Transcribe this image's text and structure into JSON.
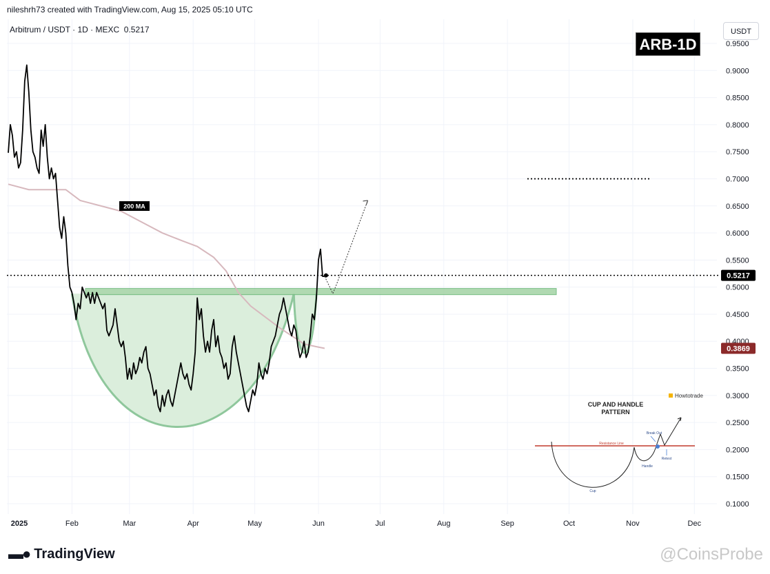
{
  "header": {
    "attribution": "nileshrh73 created with TradingView.com, Aug 15, 2025 05:10 UTC"
  },
  "symbol": {
    "line": "Arbitrum / USDT · 1D · MEXC  0.5217"
  },
  "controls": {
    "currency": "USDT"
  },
  "badge": {
    "text": "ARB-1D"
  },
  "annotations": {
    "ma_label": "200 MA"
  },
  "inset": {
    "title_line1": "CUP AND HANDLE",
    "title_line2": "PATTERN",
    "brand": "Howtotrade",
    "resistance_label": "Resistance Line",
    "breakout_label": "Break Out",
    "retest_label": "Retest",
    "handle_label": "Handle",
    "cup_label": "Cup"
  },
  "footer": {
    "brand": "TradingView",
    "watermark": "@CoinsProbe"
  },
  "colors": {
    "price_line": "#000000",
    "ma_line": "#d7b8bd",
    "cup_fill": "#dbeedc",
    "cup_stroke": "#8fc79c",
    "resistance_zone": "#a8d5a9",
    "current_price_tag": "#000000",
    "ma_price_tag": "#8b2a2a",
    "inset_resistance": "#c0392b"
  },
  "chart_data": {
    "type": "line",
    "symbol": "Arbitrum / USDT",
    "timeframe": "1D",
    "exchange": "MEXC",
    "y_axis": {
      "min": 0.1,
      "max": 0.95,
      "ticks": [
        "0.9500",
        "0.9000",
        "0.8500",
        "0.8000",
        "0.7500",
        "0.7000",
        "0.6500",
        "0.6000",
        "0.5500",
        "0.5000",
        "0.4500",
        "0.4000",
        "0.3500",
        "0.3000",
        "0.2500",
        "0.2000",
        "0.1500",
        "0.1000"
      ]
    },
    "x_axis": {
      "ticks": [
        "2025",
        "Feb",
        "Mar",
        "Apr",
        "May",
        "Jun",
        "Jul",
        "Aug",
        "Sep",
        "Oct",
        "Nov",
        "Dec"
      ]
    },
    "current_price": {
      "label": "0.5217",
      "value": 0.5217
    },
    "ma_price": {
      "label": "0.3869",
      "value": 0.3869
    },
    "price_series": [
      [
        0.0,
        0.748
      ],
      [
        1.0,
        0.8
      ],
      [
        2.0,
        0.78
      ],
      [
        3.0,
        0.74
      ],
      [
        4.0,
        0.75
      ],
      [
        5.0,
        0.72
      ],
      [
        6.0,
        0.73
      ],
      [
        7.0,
        0.79
      ],
      [
        8.0,
        0.88
      ],
      [
        9.0,
        0.91
      ],
      [
        10.0,
        0.86
      ],
      [
        11.0,
        0.79
      ],
      [
        12.0,
        0.75
      ],
      [
        13.0,
        0.74
      ],
      [
        14.0,
        0.72
      ],
      [
        15.0,
        0.71
      ],
      [
        16.0,
        0.79
      ],
      [
        17.0,
        0.76
      ],
      [
        18.0,
        0.8
      ],
      [
        19.0,
        0.74
      ],
      [
        20.0,
        0.7
      ],
      [
        21.0,
        0.72
      ],
      [
        22.0,
        0.7
      ],
      [
        23.0,
        0.71
      ],
      [
        24.0,
        0.66
      ],
      [
        25.0,
        0.61
      ],
      [
        26.0,
        0.59
      ],
      [
        27.0,
        0.63
      ],
      [
        28.0,
        0.6
      ],
      [
        29.0,
        0.54
      ],
      [
        30.0,
        0.5
      ],
      [
        31.0,
        0.49
      ],
      [
        32.0,
        0.47
      ],
      [
        33.0,
        0.44
      ],
      [
        34.0,
        0.47
      ],
      [
        35.0,
        0.46
      ],
      [
        36.0,
        0.5
      ],
      [
        37.0,
        0.49
      ],
      [
        38.0,
        0.48
      ],
      [
        39.0,
        0.49
      ],
      [
        40.0,
        0.47
      ],
      [
        41.0,
        0.49
      ],
      [
        42.0,
        0.47
      ],
      [
        43.0,
        0.49
      ],
      [
        44.0,
        0.48
      ],
      [
        45.0,
        0.47
      ],
      [
        46.0,
        0.46
      ],
      [
        47.0,
        0.47
      ],
      [
        48.0,
        0.42
      ],
      [
        49.0,
        0.41
      ],
      [
        50.0,
        0.42
      ],
      [
        51.0,
        0.43
      ],
      [
        52.0,
        0.46
      ],
      [
        53.0,
        0.43
      ],
      [
        54.0,
        0.4
      ],
      [
        55.0,
        0.39
      ],
      [
        56.0,
        0.4
      ],
      [
        57.0,
        0.37
      ],
      [
        58.0,
        0.33
      ],
      [
        59.0,
        0.35
      ],
      [
        60.0,
        0.33
      ],
      [
        61.0,
        0.36
      ],
      [
        62.0,
        0.34
      ],
      [
        63.0,
        0.35
      ],
      [
        64.0,
        0.37
      ],
      [
        65.0,
        0.36
      ],
      [
        66.0,
        0.38
      ],
      [
        67.0,
        0.39
      ],
      [
        68.0,
        0.35
      ],
      [
        69.0,
        0.34
      ],
      [
        70.0,
        0.32
      ],
      [
        71.0,
        0.3
      ],
      [
        72.0,
        0.31
      ],
      [
        73.0,
        0.28
      ],
      [
        74.0,
        0.27
      ],
      [
        75.0,
        0.3
      ],
      [
        76.0,
        0.28
      ],
      [
        77.0,
        0.3
      ],
      [
        78.0,
        0.31
      ],
      [
        79.0,
        0.29
      ],
      [
        80.0,
        0.28
      ],
      [
        81.0,
        0.3
      ],
      [
        82.0,
        0.32
      ],
      [
        83.0,
        0.34
      ],
      [
        84.0,
        0.36
      ],
      [
        85.0,
        0.34
      ],
      [
        86.0,
        0.33
      ],
      [
        87.0,
        0.34
      ],
      [
        88.0,
        0.32
      ],
      [
        89.0,
        0.31
      ],
      [
        90.0,
        0.34
      ],
      [
        91.0,
        0.38
      ],
      [
        92.0,
        0.48
      ],
      [
        93.0,
        0.44
      ],
      [
        94.0,
        0.46
      ],
      [
        95.0,
        0.41
      ],
      [
        96.0,
        0.38
      ],
      [
        97.0,
        0.4
      ],
      [
        98.0,
        0.38
      ],
      [
        99.0,
        0.42
      ],
      [
        100.0,
        0.44
      ],
      [
        101.0,
        0.39
      ],
      [
        102.0,
        0.41
      ],
      [
        103.0,
        0.38
      ],
      [
        104.0,
        0.37
      ],
      [
        105.0,
        0.35
      ],
      [
        106.0,
        0.36
      ],
      [
        107.0,
        0.33
      ],
      [
        108.0,
        0.34
      ],
      [
        109.0,
        0.39
      ],
      [
        110.0,
        0.41
      ],
      [
        111.0,
        0.38
      ],
      [
        112.0,
        0.36
      ],
      [
        113.0,
        0.34
      ],
      [
        114.0,
        0.32
      ],
      [
        115.0,
        0.3
      ],
      [
        116.0,
        0.28
      ],
      [
        117.0,
        0.27
      ],
      [
        118.0,
        0.29
      ],
      [
        119.0,
        0.31
      ],
      [
        120.0,
        0.3
      ],
      [
        121.0,
        0.32
      ],
      [
        122.0,
        0.36
      ],
      [
        123.0,
        0.34
      ],
      [
        124.0,
        0.33
      ],
      [
        125.0,
        0.35
      ],
      [
        126.0,
        0.34
      ],
      [
        127.0,
        0.36
      ],
      [
        128.0,
        0.39
      ],
      [
        129.0,
        0.4
      ],
      [
        130.0,
        0.41
      ],
      [
        131.0,
        0.43
      ],
      [
        132.0,
        0.45
      ],
      [
        133.0,
        0.46
      ],
      [
        134.0,
        0.48
      ],
      [
        135.0,
        0.46
      ],
      [
        136.0,
        0.44
      ],
      [
        137.0,
        0.42
      ],
      [
        138.0,
        0.41
      ],
      [
        139.0,
        0.43
      ],
      [
        140.0,
        0.42
      ],
      [
        141.0,
        0.39
      ],
      [
        142.0,
        0.37
      ],
      [
        143.0,
        0.38
      ],
      [
        144.0,
        0.4
      ],
      [
        145.0,
        0.37
      ],
      [
        146.0,
        0.38
      ],
      [
        147.0,
        0.41
      ],
      [
        148.0,
        0.45
      ],
      [
        149.0,
        0.44
      ],
      [
        150.0,
        0.48
      ],
      [
        151.0,
        0.55
      ],
      [
        152.0,
        0.57
      ],
      [
        153.0,
        0.52
      ],
      [
        154.0,
        0.52
      ]
    ],
    "ma_series": [
      [
        0.0,
        0.69
      ],
      [
        10.0,
        0.68
      ],
      [
        20.0,
        0.68
      ],
      [
        28.0,
        0.68
      ],
      [
        35.0,
        0.66
      ],
      [
        45.0,
        0.65
      ],
      [
        55.0,
        0.64
      ],
      [
        65.0,
        0.62
      ],
      [
        75.0,
        0.6
      ],
      [
        85.0,
        0.585
      ],
      [
        92.0,
        0.575
      ],
      [
        100.0,
        0.555
      ],
      [
        106.0,
        0.53
      ],
      [
        112.0,
        0.49
      ],
      [
        118.0,
        0.465
      ],
      [
        125.0,
        0.445
      ],
      [
        132.0,
        0.425
      ],
      [
        138.0,
        0.41
      ],
      [
        144.0,
        0.395
      ],
      [
        150.0,
        0.39
      ],
      [
        154.0,
        0.3869
      ]
    ],
    "resistance_zone": {
      "top": 0.4975,
      "bottom": 0.486,
      "x_start": 30,
      "x_end": 210
    },
    "target_level": 0.7,
    "cup": {
      "x_start": 31,
      "x_end": 139,
      "rim": 0.488,
      "bottom": 0.198
    },
    "handle": {
      "x_start": 139,
      "x_end": 150,
      "rim": 0.488,
      "bottom": 0.365
    },
    "projection": [
      [
        154,
        0.52
      ],
      [
        158,
        0.488
      ],
      [
        160,
        0.507
      ],
      [
        175,
        0.66
      ]
    ],
    "x_tick_positions": {
      "2025": 0,
      "Feb": 31,
      "Mar": 59,
      "Apr": 90,
      "May": 120,
      "Jun": 151,
      "Jul": 181,
      "Aug": 212,
      "Sep": 243,
      "Oct": 273,
      "Nov": 304,
      "Dec": 334
    }
  }
}
